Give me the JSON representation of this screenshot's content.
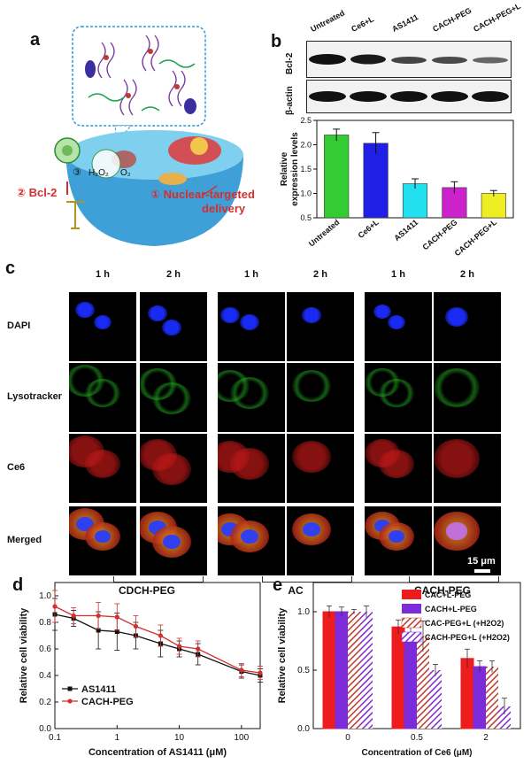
{
  "panels": {
    "a": "a",
    "b": "b",
    "c": "c",
    "d": "d",
    "e": "e"
  },
  "panel_a": {
    "steps": [
      "② Bcl-2",
      "① Nuclear-targeted",
      "delivery",
      "③",
      "H₂O₂",
      "O₂"
    ]
  },
  "panel_b": {
    "blot_labels": [
      "Bcl-2",
      "β-actin"
    ],
    "lanes": [
      "Untreated",
      "Ce6+L",
      "AS1411",
      "CACH-PEG",
      "CACH-PEG+L"
    ]
  },
  "panel_c": {
    "times": [
      "1 h",
      "2 h"
    ],
    "rows": [
      "DAPI",
      "Lysotracker",
      "Ce6",
      "Merged"
    ],
    "groups": [
      "CDCH-PEG",
      "AC",
      "CACH-PEG"
    ],
    "scale_bar": "15 μm"
  },
  "colors": {
    "red": "#d32f2f",
    "black": "#111111",
    "purple": "#7b1fa2"
  },
  "chart_data": [
    {
      "id": "b",
      "type": "bar",
      "categories": [
        "Untreated",
        "Ce6+L",
        "AS1411",
        "CACH-PEG",
        "CACH-PEG+L"
      ],
      "values": [
        2.2,
        2.03,
        1.2,
        1.12,
        1.0
      ],
      "errors": [
        0.12,
        0.22,
        0.1,
        0.12,
        0.06
      ],
      "colors": [
        "#33cc33",
        "#1f1fe6",
        "#22e0ee",
        "#cc22cc",
        "#eeee22"
      ],
      "ylabel": "Relative expression levels",
      "ylim": [
        0.5,
        2.5
      ],
      "yticks": [
        "0.5",
        "1.0",
        "1.5",
        "2.0",
        "2.5"
      ]
    },
    {
      "id": "d",
      "type": "line",
      "xscale": "log",
      "xlabel": "Concentration of AS1411 (μM)",
      "ylabel": "Relative cell viability",
      "xlim": [
        0.1,
        200
      ],
      "ylim": [
        0.0,
        1.1
      ],
      "xticks": [
        "0.1",
        "1",
        "10",
        "100"
      ],
      "yticks": [
        "0.0",
        "0.2",
        "0.4",
        "0.6",
        "0.8",
        "1.0"
      ],
      "x": [
        0.1,
        0.2,
        0.5,
        1,
        2,
        5,
        10,
        20,
        100,
        200
      ],
      "series": [
        {
          "name": "AS1411",
          "color": "#111111",
          "marker": "square",
          "values": [
            0.86,
            0.83,
            0.74,
            0.73,
            0.7,
            0.64,
            0.6,
            0.56,
            0.43,
            0.4
          ],
          "errors": [
            0.12,
            0.06,
            0.14,
            0.14,
            0.1,
            0.1,
            0.06,
            0.08,
            0.05,
            0.05
          ]
        },
        {
          "name": "CACH-PEG",
          "color": "#d32f2f",
          "marker": "circle",
          "values": [
            0.92,
            0.85,
            0.85,
            0.84,
            0.77,
            0.7,
            0.62,
            0.6,
            0.44,
            0.42
          ],
          "errors": [
            0.12,
            0.06,
            0.1,
            0.1,
            0.08,
            0.08,
            0.06,
            0.06,
            0.05,
            0.05
          ]
        }
      ]
    },
    {
      "id": "e",
      "type": "bar",
      "xlabel": "Concentration of Ce6 (μM)",
      "ylabel": "Relative cell viability",
      "ylim": [
        0.0,
        1.25
      ],
      "yticks": [
        "0.0",
        "0.5",
        "1.0"
      ],
      "categories": [
        "0",
        "0.5",
        "2"
      ],
      "series": [
        {
          "name": "CAC+L-PEG",
          "color": "#ee1c1c",
          "hatch": false,
          "values": [
            1.0,
            0.87,
            0.6
          ],
          "errors": [
            0.05,
            0.06,
            0.08
          ]
        },
        {
          "name": "CACH+L-PEG",
          "color": "#7b2bd9",
          "hatch": false,
          "values": [
            1.0,
            0.81,
            0.53
          ],
          "errors": [
            0.04,
            0.06,
            0.05
          ]
        },
        {
          "name": "CAC-PEG+L (+H2O2)",
          "color": "#c0392b",
          "hatch": true,
          "values": [
            1.0,
            0.79,
            0.53
          ],
          "errors": [
            0.02,
            0.13,
            0.05
          ]
        },
        {
          "name": "CACH-PEG+L (+H2O2)",
          "color": "#7b2bd9",
          "hatch": true,
          "values": [
            1.0,
            0.5,
            0.19
          ],
          "errors": [
            0.05,
            0.05,
            0.07
          ]
        }
      ]
    }
  ]
}
